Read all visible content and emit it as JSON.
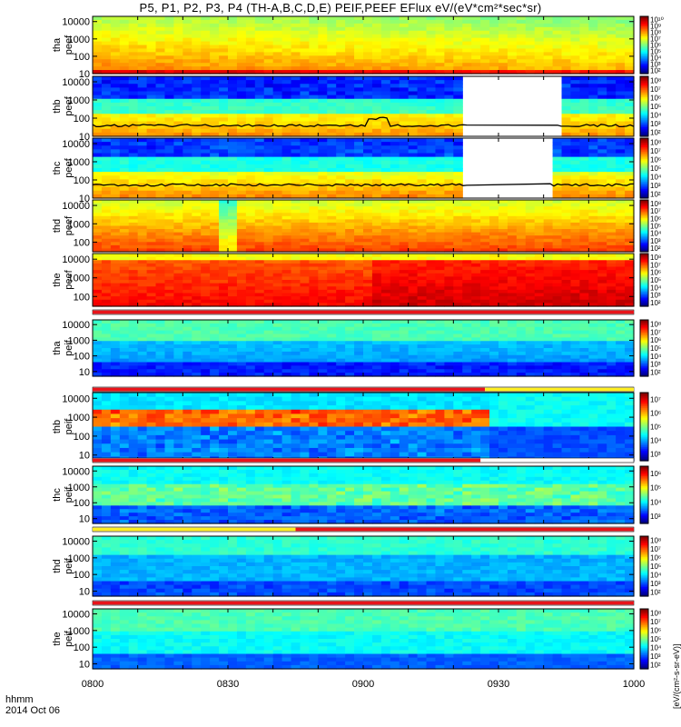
{
  "title": "P5, P1, P2, P3, P4 (TH-A,B,C,D,E) PEIF,PEEF EFlux eV/(eV*cm²*sec*sr)",
  "time_labels": {
    "hhmm": "hhmm",
    "date": "2014 Oct 06"
  },
  "colorbar_unit": "[eV/(cm²-s-sr-eV)]",
  "chart_data": [
    {
      "type": "heatmap",
      "panel": "tha peef",
      "ylabel": [
        "tha",
        "peef"
      ],
      "yticks": [
        "10000",
        "1000",
        "100",
        "10"
      ],
      "ylog": [
        10,
        20000
      ],
      "cbar": [
        "10¹⁰",
        "10⁹",
        "10⁸",
        "10⁷",
        "10⁶",
        "10⁵",
        "10⁴",
        "10³",
        "10²"
      ],
      "x": [
        "0800",
        "0830",
        "0900",
        "0930",
        "1000"
      ],
      "dominant": "green-yellow",
      "gaps": []
    },
    {
      "type": "heatmap",
      "panel": "thb peef",
      "ylabel": [
        "thb",
        "peef"
      ],
      "yticks": [
        "10000",
        "1000",
        "100",
        "10"
      ],
      "ylog": [
        10,
        20000
      ],
      "cbar": [
        "10⁸",
        "10⁷",
        "10⁶",
        "10⁵",
        "10⁴",
        "10³",
        "10²"
      ],
      "x": [
        "0800",
        "0830",
        "0900",
        "0930",
        "1000"
      ],
      "dominant": "blue-red",
      "gaps": [
        [
          "0923",
          "0943"
        ]
      ]
    },
    {
      "type": "heatmap",
      "panel": "thc peef",
      "ylabel": [
        "thc",
        "peef"
      ],
      "yticks": [
        "10000",
        "1000",
        "100",
        "10"
      ],
      "ylog": [
        10,
        20000
      ],
      "cbar": [
        "10⁸",
        "10⁷",
        "10⁶",
        "10⁵",
        "10⁴",
        "10³",
        "10²"
      ],
      "x": [
        "0800",
        "0830",
        "0900",
        "0930",
        "1000"
      ],
      "dominant": "blue-red",
      "gaps": [
        [
          "0923",
          "0941"
        ]
      ]
    },
    {
      "type": "heatmap",
      "panel": "thd peef",
      "ylabel": [
        "thd",
        "peef"
      ],
      "yticks": [
        "10000",
        "1000",
        "100"
      ],
      "ylog": [
        30,
        20000
      ],
      "cbar": [
        "10⁸",
        "10⁷",
        "10⁶",
        "10⁵",
        "10⁴",
        "10³",
        "10²"
      ],
      "x": [
        "0800",
        "0830",
        "0900",
        "0930",
        "1000"
      ],
      "dominant": "yellow-orange",
      "gaps": []
    },
    {
      "type": "heatmap",
      "panel": "the peef",
      "ylabel": [
        "the",
        "peef"
      ],
      "yticks": [
        "10000",
        "1000",
        "100"
      ],
      "ylog": [
        30,
        20000
      ],
      "cbar": [
        "10⁸",
        "10⁷",
        "10⁶",
        "10⁵",
        "10⁴",
        "10³",
        "10²"
      ],
      "x": [
        "0800",
        "0830",
        "0900",
        "0930",
        "1000"
      ],
      "dominant": "red-orange",
      "gaps": []
    },
    {
      "type": "heatmap",
      "panel": "tha peif",
      "ylabel": [
        "tha",
        "peif"
      ],
      "yticks": [
        "10000",
        "1000",
        "100",
        "10"
      ],
      "ylog": [
        5,
        20000
      ],
      "cbar": [
        "10⁸",
        "10⁷",
        "10⁶",
        "10⁵",
        "10⁴",
        "10³",
        "10²"
      ],
      "x": [
        "0800",
        "0830",
        "0900",
        "0930",
        "1000"
      ],
      "dominant": "green-blue",
      "gaps": []
    },
    {
      "type": "heatmap",
      "panel": "thb peif",
      "ylabel": [
        "thb",
        "peif"
      ],
      "yticks": [
        "10000",
        "1000",
        "100",
        "10"
      ],
      "ylog": [
        5,
        20000
      ],
      "cbar": [
        "10⁷",
        "10⁶",
        "10⁵",
        "10⁴",
        "10³"
      ],
      "x": [
        "0800",
        "0830",
        "0900",
        "0930",
        "1000"
      ],
      "dominant": "cyan-red",
      "gaps": []
    },
    {
      "type": "heatmap",
      "panel": "thc peif",
      "ylabel": [
        "thc",
        "peif"
      ],
      "yticks": [
        "10000",
        "1000",
        "100",
        "10"
      ],
      "ylog": [
        5,
        20000
      ],
      "cbar": [
        "10⁶",
        "10⁵",
        "10⁴",
        "10³"
      ],
      "x": [
        "0800",
        "0830",
        "0900",
        "0930",
        "1000"
      ],
      "dominant": "cyan-green",
      "gaps": []
    },
    {
      "type": "heatmap",
      "panel": "thd peif",
      "ylabel": [
        "thd",
        "peif"
      ],
      "yticks": [
        "10000",
        "1000",
        "100",
        "10"
      ],
      "ylog": [
        5,
        20000
      ],
      "cbar": [
        "10⁸",
        "10⁷",
        "10⁶",
        "10⁵",
        "10⁴",
        "10³",
        "10²"
      ],
      "x": [
        "0800",
        "0830",
        "0900",
        "0930",
        "1000"
      ],
      "dominant": "green-blue",
      "gaps": []
    },
    {
      "type": "heatmap",
      "panel": "the peif",
      "ylabel": [
        "the",
        "peif"
      ],
      "yticks": [
        "10000",
        "1000",
        "100",
        "10"
      ],
      "ylog": [
        5,
        20000
      ],
      "cbar": [
        "10⁸",
        "10⁷",
        "10⁶",
        "10⁵",
        "10⁴",
        "10³",
        "10²"
      ],
      "x": [
        "0800",
        "0830",
        "0900",
        "0930",
        "1000"
      ],
      "dominant": "green-cyan",
      "gaps": []
    }
  ]
}
